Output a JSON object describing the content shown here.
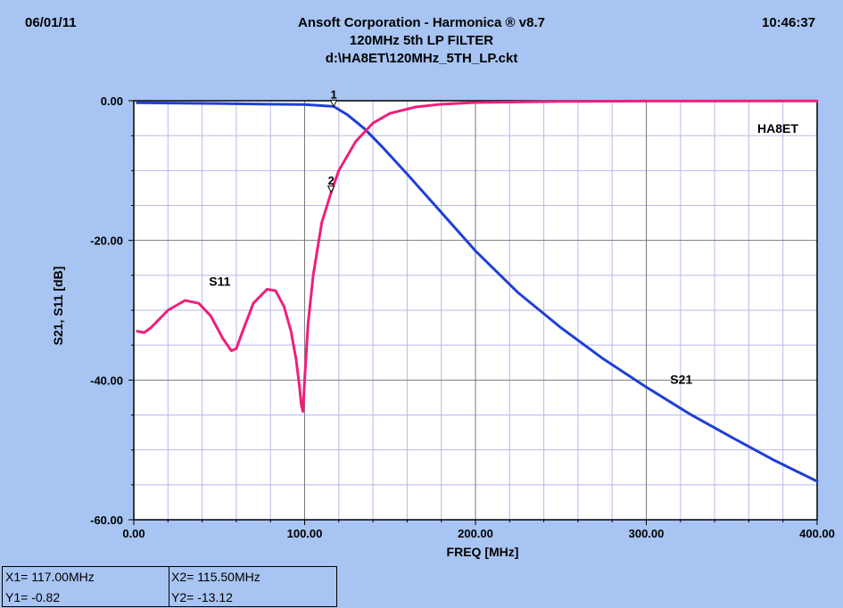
{
  "header": {
    "date": "06/01/11",
    "time": "10:46:37",
    "title": "Ansoft Corporation - Harmonica ® v8.7",
    "subtitle": "120MHz 5th LP FILTER",
    "file": "d:\\HA8ET\\120MHz_5TH_LP.ckt"
  },
  "readout": {
    "x1": "X1= 117.00MHz",
    "y1": "Y1= -0.82",
    "x2": "X2= 115.50MHz",
    "y2": "Y2= -13.12"
  },
  "chart_data": {
    "type": "line",
    "title": "",
    "xlabel": "FREQ [MHz]",
    "ylabel": "S21, S11 [dB]",
    "xlim": [
      0,
      400
    ],
    "ylim": [
      -60,
      0
    ],
    "xticks": [
      "0.00",
      "100.00",
      "200.00",
      "300.00",
      "400.00"
    ],
    "yticks": [
      "0.00",
      "-20.00",
      "-40.00",
      "-60.00"
    ],
    "grid": true,
    "annotation": "HA8ET",
    "colors": {
      "S21": "#1f3fd6",
      "S11": "#ee1f7a",
      "plot_bg": "#ffffff",
      "grid": "#b8b8f0"
    },
    "series": [
      {
        "name": "S21",
        "x": [
          2,
          50,
          80,
          100,
          110,
          117,
          125,
          135,
          145,
          160,
          180,
          200,
          225,
          250,
          275,
          300,
          325,
          350,
          375,
          400
        ],
        "y": [
          -0.3,
          -0.4,
          -0.5,
          -0.55,
          -0.7,
          -0.82,
          -2.0,
          -4.0,
          -6.5,
          -10.5,
          -16.0,
          -21.5,
          -27.5,
          -32.5,
          -37.0,
          -41.0,
          -44.8,
          -48.2,
          -51.5,
          -54.5
        ]
      },
      {
        "name": "S11",
        "x": [
          2,
          6,
          10,
          20,
          30,
          38,
          45,
          52,
          57,
          60,
          63,
          70,
          78,
          83,
          88,
          92,
          95,
          97,
          98,
          99,
          100,
          102,
          105,
          110,
          115.5,
          120,
          130,
          140,
          150,
          165,
          180,
          200,
          250,
          300,
          400
        ],
        "y": [
          -33.0,
          -33.2,
          -32.5,
          -30.0,
          -28.6,
          -29.0,
          -30.8,
          -34.0,
          -35.8,
          -35.5,
          -33.5,
          -29.0,
          -27.0,
          -27.2,
          -29.5,
          -33.0,
          -37.0,
          -41.0,
          -43.5,
          -44.5,
          -40.0,
          -32.0,
          -25.0,
          -17.5,
          -13.12,
          -10.0,
          -5.8,
          -3.2,
          -1.8,
          -0.9,
          -0.5,
          -0.25,
          -0.1,
          -0.05,
          -0.02
        ]
      }
    ],
    "series_labels": [
      {
        "text": "S11",
        "x": 44,
        "y": -26.5
      },
      {
        "text": "S21",
        "x": 314,
        "y": -40.5
      }
    ],
    "markers": [
      {
        "label": "1",
        "x": 117.0,
        "y": -0.82
      },
      {
        "label": "2",
        "x": 115.5,
        "y": -13.12
      }
    ]
  }
}
